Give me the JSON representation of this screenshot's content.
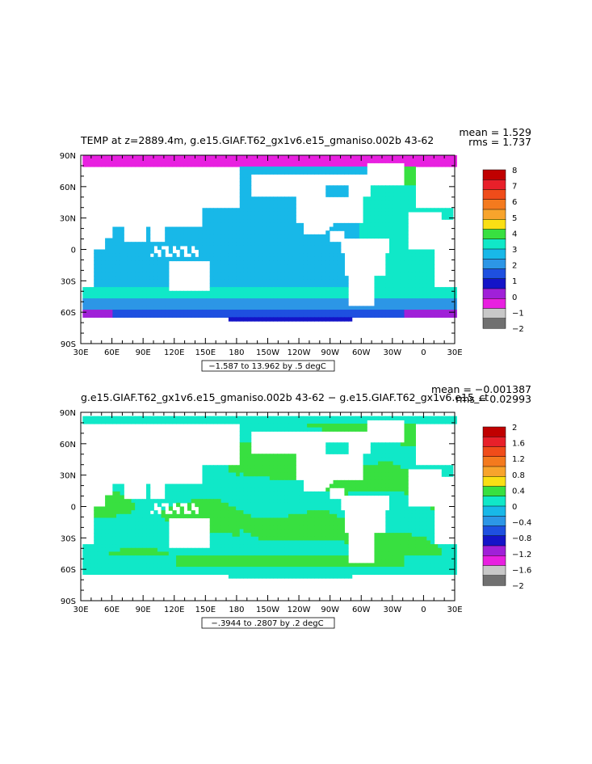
{
  "chart_data": [
    {
      "type": "heatmap",
      "title": "TEMP at z=2889.4m, g.e15.GIAF.T62_gx1v6.e15_gmaniso.002b ‌43-62‌",
      "mean_label": "mean = 1.529",
      "rms_label": "rms = 1.737",
      "contour_label": "−1.587 to 13.962 by .5 degC",
      "x_ticks": [
        "30E",
        "60E",
        "90E",
        "120E",
        "150E",
        "180",
        "150W",
        "120W",
        "90W",
        "60W",
        "30W",
        "0",
        "30E"
      ],
      "y_ticks": [
        "90N",
        "60N",
        "30N",
        "0",
        "30S",
        "60S",
        "90S"
      ],
      "colorbar": {
        "labels": [
          "8",
          "7",
          "6",
          "5",
          "4",
          "3",
          "2",
          "1",
          "0",
          "−1",
          "−2"
        ],
        "colors": [
          "#c00000",
          "#e8202a",
          "#f04c1a",
          "#f47a1e",
          "#f8a42c",
          "#fadf14",
          "#38e040",
          "#10e8c8",
          "#18b8e8",
          "#2c96e6",
          "#1e50e0",
          "#1414c8",
          "#a020d8",
          "#e820e0",
          "#c8c8c8",
          "#707070"
        ]
      }
    },
    {
      "type": "heatmap",
      "title": "g.e15.GIAF.T62_gx1v6.e15_gmaniso.002b ‌43-62‌ − g.e15.GIAF.T62_gx1v6.e15_ct",
      "mean_label": "mean = −0.001387",
      "rms_label": "rms = 0.02993",
      "contour_label": "−.3944 to .2807 by .2 degC",
      "x_ticks": [
        "30E",
        "60E",
        "90E",
        "120E",
        "150E",
        "180",
        "150W",
        "120W",
        "90W",
        "60W",
        "30W",
        "0",
        "30E"
      ],
      "y_ticks": [
        "90N",
        "60N",
        "30N",
        "0",
        "30S",
        "60S",
        "90S"
      ],
      "colorbar": {
        "labels": [
          "2",
          "1.6",
          "1.2",
          "0.8",
          "0.4",
          "0",
          "−0.4",
          "−0.8",
          "−1.2",
          "−1.6",
          "−2"
        ],
        "colors": [
          "#c00000",
          "#e8202a",
          "#f04c1a",
          "#f47a1e",
          "#f8a42c",
          "#fadf14",
          "#38e040",
          "#10e8c8",
          "#18b8e8",
          "#2c96e6",
          "#1e50e0",
          "#1414c8",
          "#a020d8",
          "#e820e0",
          "#c8c8c8",
          "#707070"
        ]
      }
    }
  ]
}
